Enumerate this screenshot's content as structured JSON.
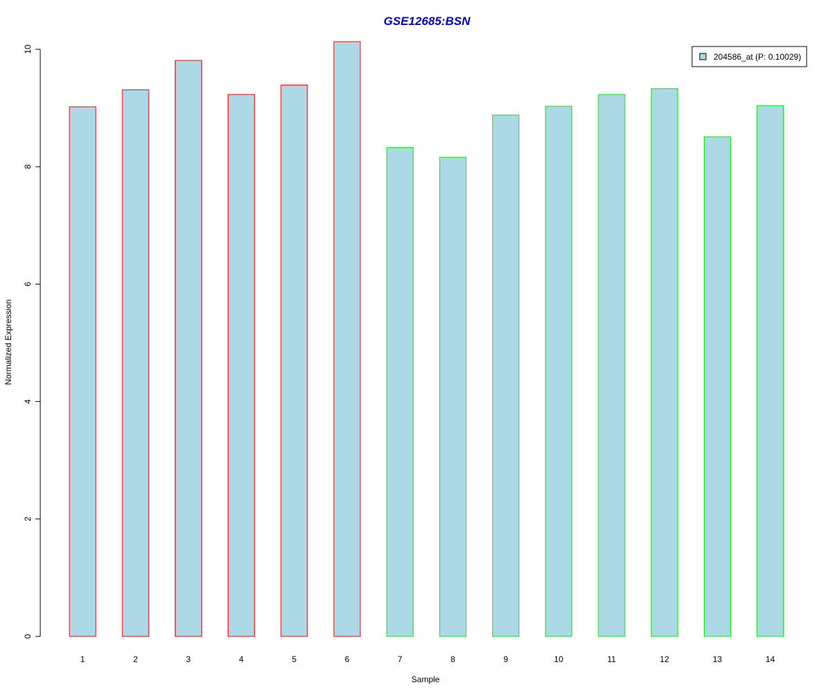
{
  "colors": {
    "title": "#0000cc",
    "bar_fill": "#add8e6",
    "group1_border": "#ff0000",
    "group2_border": "#00ee00",
    "axis": "#000000"
  },
  "chart_data": {
    "type": "bar",
    "title": "GSE12685:BSN",
    "xlabel": "Sample",
    "ylabel": "Normalized Expression",
    "ylim": [
      0,
      10
    ],
    "yticks": [
      0,
      2,
      4,
      6,
      8,
      10
    ],
    "grid": false,
    "legend_position": "top-right",
    "categories": [
      "1",
      "2",
      "3",
      "4",
      "5",
      "6",
      "7",
      "8",
      "9",
      "10",
      "11",
      "12",
      "13",
      "14"
    ],
    "series": [
      {
        "name": "204586_at (P: 0.10029)",
        "values": [
          9.02,
          9.31,
          9.81,
          9.23,
          9.39,
          10.13,
          8.33,
          8.16,
          8.88,
          9.03,
          9.23,
          9.33,
          8.51,
          9.04
        ]
      }
    ],
    "groups": [
      1,
      1,
      1,
      1,
      1,
      1,
      2,
      2,
      2,
      2,
      2,
      2,
      2,
      2
    ]
  }
}
